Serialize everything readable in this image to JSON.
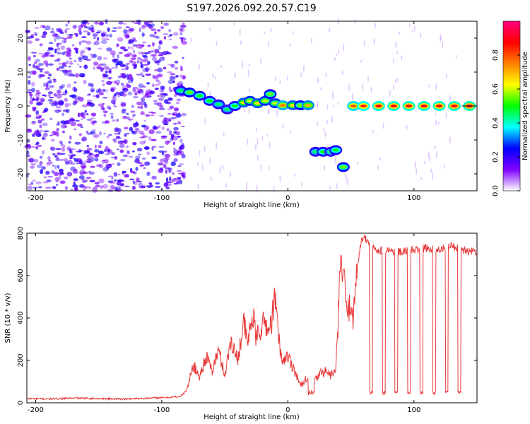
{
  "chart_data": [
    {
      "type": "heatmap",
      "title": "S197.2026.092.20.57.C19",
      "xlabel": "Height of straight line (km)",
      "ylabel": "Frequency (Hz)",
      "xlim": [
        -207,
        150
      ],
      "ylim": [
        -25,
        25
      ],
      "xticks": [
        -200,
        -100,
        0,
        100
      ],
      "yticks": [
        -20,
        -10,
        0,
        10,
        20
      ],
      "colorbar": {
        "label": "Normalized spectral amplitude",
        "range": [
          0,
          1
        ],
        "ticks": [
          "0.0",
          "0.2",
          "0.4",
          "0.6",
          "0.8"
        ],
        "colors": [
          "#ffffff",
          "#8000ff",
          "#0000ff",
          "#00ffff",
          "#00ff00",
          "#ffff00",
          "#ff8000",
          "#ff0000",
          "#ff0080"
        ]
      },
      "noise_region_km": [
        -207,
        -82
      ],
      "track": [
        {
          "x": -85,
          "y": 4.5,
          "v": 0.45
        },
        {
          "x": -78,
          "y": 4.0,
          "v": 0.55
        },
        {
          "x": -70,
          "y": 3.0,
          "v": 0.5
        },
        {
          "x": -62,
          "y": 1.5,
          "v": 0.5
        },
        {
          "x": -55,
          "y": 0.5,
          "v": 0.45
        },
        {
          "x": -48,
          "y": -1.0,
          "v": 0.45
        },
        {
          "x": -42,
          "y": 0.0,
          "v": 0.5
        },
        {
          "x": -35,
          "y": 1.0,
          "v": 0.65
        },
        {
          "x": -30,
          "y": 1.5,
          "v": 0.6
        },
        {
          "x": -24,
          "y": 0.8,
          "v": 0.65
        },
        {
          "x": -18,
          "y": 1.5,
          "v": 0.6
        },
        {
          "x": -14,
          "y": 3.5,
          "v": 0.55
        },
        {
          "x": -10,
          "y": 0.8,
          "v": 0.6
        },
        {
          "x": -4,
          "y": 0.2,
          "v": 0.75
        },
        {
          "x": 4,
          "y": 0.2,
          "v": 0.65
        },
        {
          "x": 10,
          "y": 0.2,
          "v": 0.55
        },
        {
          "x": 16,
          "y": 0.2,
          "v": 0.7
        },
        {
          "x": 22,
          "y": -13.5,
          "v": 0.45
        },
        {
          "x": 28,
          "y": -13.5,
          "v": 0.5
        },
        {
          "x": 34,
          "y": -13.5,
          "v": 0.45
        },
        {
          "x": 38,
          "y": -13.0,
          "v": 0.5
        },
        {
          "x": 44,
          "y": -18.0,
          "v": 0.55
        },
        {
          "x": 52,
          "y": 0.0,
          "v": 0.8
        },
        {
          "x": 60,
          "y": 0.0,
          "v": 0.85
        },
        {
          "x": 72,
          "y": 0.0,
          "v": 0.88
        },
        {
          "x": 84,
          "y": 0.0,
          "v": 0.88
        },
        {
          "x": 96,
          "y": 0.0,
          "v": 0.88
        },
        {
          "x": 108,
          "y": 0.0,
          "v": 0.88
        },
        {
          "x": 120,
          "y": 0.0,
          "v": 0.88
        },
        {
          "x": 132,
          "y": 0.0,
          "v": 0.9
        },
        {
          "x": 144,
          "y": 0.0,
          "v": 0.92
        }
      ]
    },
    {
      "type": "line",
      "xlabel": "Height of straight line (km)",
      "ylabel": "SNR (10 * v/v)",
      "xlim": [
        -207,
        150
      ],
      "ylim": [
        0,
        800
      ],
      "xticks": [
        -200,
        -100,
        0,
        100
      ],
      "yticks": [
        0,
        200,
        400,
        600,
        800
      ],
      "line_color": "#e8393a",
      "series": [
        {
          "name": "SNR",
          "x": [
            -207,
            -190,
            -170,
            -150,
            -130,
            -110,
            -95,
            -85,
            -80,
            -75,
            -70,
            -65,
            -60,
            -55,
            -50,
            -45,
            -40,
            -35,
            -32,
            -28,
            -25,
            -22,
            -18,
            -15,
            -12,
            -10,
            -8,
            -5,
            0,
            5,
            10,
            15,
            18,
            22,
            26,
            30,
            34,
            38,
            40,
            42,
            44,
            46,
            48,
            50,
            52,
            54,
            56,
            58,
            60,
            70,
            80,
            90,
            100,
            110,
            120,
            130,
            140,
            150
          ],
          "values": [
            20,
            18,
            22,
            20,
            18,
            22,
            25,
            30,
            60,
            180,
            120,
            220,
            150,
            250,
            130,
            300,
            200,
            380,
            280,
            420,
            300,
            350,
            380,
            330,
            420,
            500,
            350,
            200,
            220,
            160,
            80,
            120,
            60,
            110,
            140,
            150,
            130,
            150,
            400,
            680,
            600,
            480,
            420,
            500,
            380,
            600,
            680,
            760,
            780,
            720,
            720,
            710,
            720,
            730,
            720,
            740,
            720,
            715
          ]
        }
      ],
      "dropouts": [
        66,
        76,
        86,
        96,
        106,
        116,
        126,
        136
      ]
    }
  ]
}
